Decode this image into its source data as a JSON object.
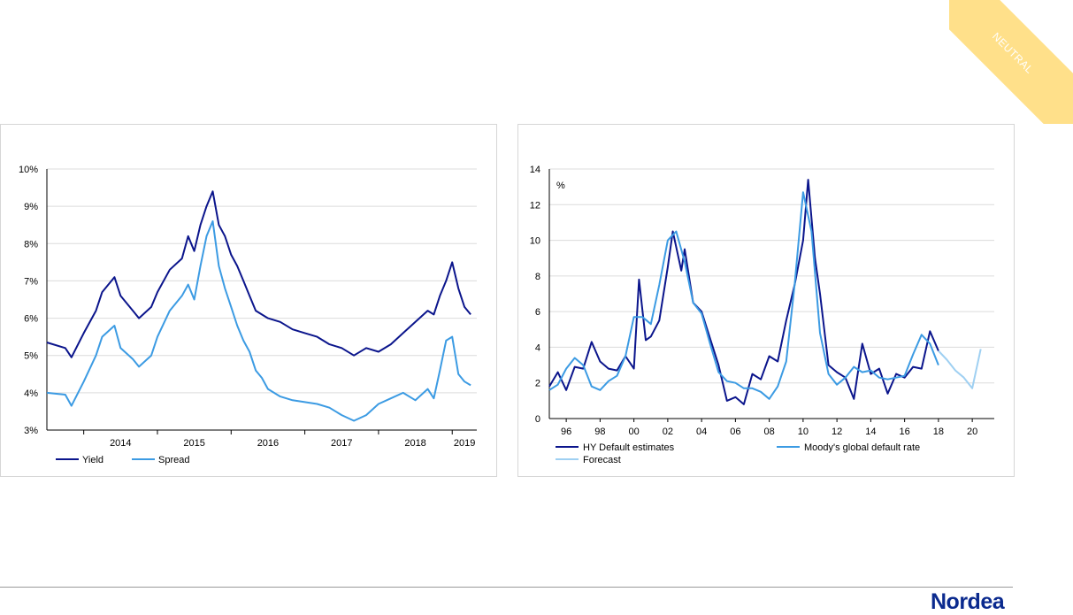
{
  "badge": "NEUTRAL",
  "brand": "Nordea",
  "colors": {
    "dark_navy": "#0b158c",
    "mid_blue": "#3c9be3",
    "light_blue": "#9fd0f2",
    "badge_yellow": "#ffe08a"
  },
  "chart_data": [
    {
      "type": "line",
      "title": "",
      "xlabel": "",
      "ylabel": "",
      "x_ticks": [
        "2014",
        "2015",
        "2016",
        "2017",
        "2018",
        "2019"
      ],
      "y_ticks": [
        "3%",
        "4%",
        "5%",
        "6%",
        "7%",
        "8%",
        "9%",
        "10%"
      ],
      "ylim": [
        3,
        10
      ],
      "xlim": [
        "2013-07",
        "2019-05"
      ],
      "grid": true,
      "legend_position": "bottom-left",
      "series": [
        {
          "name": "Yield",
          "color": "#0b158c",
          "x": [
            "2013-07",
            "2013-10",
            "2013-11",
            "2014-01",
            "2014-03",
            "2014-04",
            "2014-06",
            "2014-07",
            "2014-09",
            "2014-10",
            "2014-12",
            "2015-01",
            "2015-03",
            "2015-05",
            "2015-06",
            "2015-07",
            "2015-08",
            "2015-09",
            "2015-10",
            "2015-11",
            "2015-12",
            "2016-01",
            "2016-02",
            "2016-03",
            "2016-04",
            "2016-05",
            "2016-06",
            "2016-07",
            "2016-09",
            "2016-11",
            "2017-01",
            "2017-03",
            "2017-05",
            "2017-07",
            "2017-09",
            "2017-11",
            "2018-01",
            "2018-03",
            "2018-05",
            "2018-07",
            "2018-09",
            "2018-10",
            "2018-11",
            "2018-12",
            "2019-01",
            "2019-02",
            "2019-03",
            "2019-04"
          ],
          "values": [
            5.35,
            5.2,
            4.95,
            5.6,
            6.2,
            6.7,
            7.1,
            6.6,
            6.2,
            6.0,
            6.3,
            6.7,
            7.3,
            7.6,
            8.2,
            7.8,
            8.5,
            9.0,
            9.4,
            8.5,
            8.2,
            7.7,
            7.4,
            7.0,
            6.6,
            6.2,
            6.1,
            6.0,
            5.9,
            5.7,
            5.6,
            5.5,
            5.3,
            5.2,
            5.0,
            5.2,
            5.1,
            5.3,
            5.6,
            5.9,
            6.2,
            6.1,
            6.6,
            7.0,
            7.5,
            6.8,
            6.3,
            6.1
          ]
        },
        {
          "name": "Spread",
          "color": "#3c9be3",
          "x": [
            "2013-07",
            "2013-10",
            "2013-11",
            "2014-01",
            "2014-03",
            "2014-04",
            "2014-06",
            "2014-07",
            "2014-09",
            "2014-10",
            "2014-12",
            "2015-01",
            "2015-03",
            "2015-05",
            "2015-06",
            "2015-07",
            "2015-08",
            "2015-09",
            "2015-10",
            "2015-11",
            "2015-12",
            "2016-01",
            "2016-02",
            "2016-03",
            "2016-04",
            "2016-05",
            "2016-06",
            "2016-07",
            "2016-09",
            "2016-11",
            "2017-01",
            "2017-03",
            "2017-05",
            "2017-07",
            "2017-09",
            "2017-11",
            "2018-01",
            "2018-03",
            "2018-05",
            "2018-07",
            "2018-09",
            "2018-10",
            "2018-11",
            "2018-12",
            "2019-01",
            "2019-02",
            "2019-03",
            "2019-04"
          ],
          "values": [
            4.0,
            3.95,
            3.65,
            4.3,
            5.0,
            5.5,
            5.8,
            5.2,
            4.9,
            4.7,
            5.0,
            5.5,
            6.2,
            6.6,
            6.9,
            6.5,
            7.4,
            8.2,
            8.6,
            7.4,
            6.8,
            6.3,
            5.8,
            5.4,
            5.1,
            4.6,
            4.4,
            4.1,
            3.9,
            3.8,
            3.75,
            3.7,
            3.6,
            3.4,
            3.25,
            3.4,
            3.7,
            3.85,
            4.0,
            3.8,
            4.1,
            3.85,
            4.6,
            5.4,
            5.5,
            4.5,
            4.3,
            4.2
          ]
        }
      ]
    },
    {
      "type": "line",
      "title": "",
      "xlabel": "",
      "ylabel": "%",
      "x_ticks": [
        "96",
        "98",
        "00",
        "02",
        "04",
        "06",
        "08",
        "10",
        "12",
        "14",
        "16",
        "18",
        "20"
      ],
      "y_ticks": [
        "0",
        "2",
        "4",
        "6",
        "8",
        "10",
        "12",
        "14"
      ],
      "ylim": [
        0,
        14
      ],
      "xlim": [
        1995,
        2021.3
      ],
      "grid": true,
      "legend_position": "bottom",
      "series": [
        {
          "name": "HY Default estimates",
          "color": "#0b158c",
          "x": [
            1995,
            1995.5,
            1996,
            1996.5,
            1997,
            1997.5,
            1998,
            1998.5,
            1999,
            1999.5,
            2000,
            2000.3,
            2000.7,
            2001,
            2001.5,
            2002,
            2002.3,
            2002.8,
            2003,
            2003.5,
            2004,
            2004.5,
            2005,
            2005.5,
            2006,
            2006.5,
            2007,
            2007.5,
            2008,
            2008.5,
            2009,
            2009.5,
            2010,
            2010.3,
            2010.7,
            2011,
            2011.5,
            2012,
            2012.5,
            2013,
            2013.5,
            2014,
            2014.5,
            2015,
            2015.5,
            2016,
            2016.5,
            2017,
            2017.5,
            2018
          ],
          "values": [
            1.8,
            2.6,
            1.6,
            2.9,
            2.8,
            4.3,
            3.2,
            2.8,
            2.7,
            3.5,
            2.8,
            7.8,
            4.4,
            4.6,
            5.5,
            8.5,
            10.5,
            8.3,
            9.5,
            6.5,
            6.0,
            4.5,
            3.0,
            1.0,
            1.2,
            0.8,
            2.5,
            2.2,
            3.5,
            3.2,
            5.5,
            7.5,
            10.0,
            13.4,
            9.0,
            7.0,
            3.0,
            2.6,
            2.3,
            1.1,
            4.2,
            2.5,
            2.8,
            1.4,
            2.5,
            2.3,
            2.9,
            2.8,
            4.9,
            3.8
          ]
        },
        {
          "name": "Moody's global default rate",
          "color": "#3c9be3",
          "x": [
            1995,
            1995.5,
            1996,
            1996.5,
            1997,
            1997.5,
            1998,
            1998.5,
            1999,
            1999.5,
            2000,
            2000.5,
            2001,
            2001.5,
            2002,
            2002.5,
            2003,
            2003.5,
            2004,
            2004.5,
            2005,
            2005.5,
            2006,
            2006.5,
            2007,
            2007.5,
            2008,
            2008.5,
            2009,
            2009.5,
            2010,
            2010.5,
            2011,
            2011.5,
            2012,
            2012.5,
            2013,
            2013.5,
            2014,
            2014.5,
            2015,
            2015.5,
            2016,
            2016.5,
            2017,
            2017.5,
            2018
          ],
          "values": [
            1.6,
            1.9,
            2.8,
            3.4,
            3.0,
            1.8,
            1.6,
            2.1,
            2.4,
            3.5,
            5.7,
            5.7,
            5.3,
            7.5,
            10.0,
            10.5,
            8.8,
            6.5,
            5.9,
            4.2,
            2.6,
            2.1,
            2.0,
            1.7,
            1.7,
            1.5,
            1.1,
            1.8,
            3.2,
            7.5,
            12.7,
            10.5,
            4.8,
            2.5,
            1.9,
            2.3,
            2.9,
            2.6,
            2.7,
            2.3,
            2.2,
            2.3,
            2.4,
            3.6,
            4.7,
            4.2,
            3.0
          ]
        },
        {
          "name": "Forecast",
          "color": "#9fd0f2",
          "x": [
            2018,
            2018.5,
            2019,
            2019.5,
            2020,
            2020.5
          ],
          "values": [
            3.8,
            3.3,
            2.7,
            2.3,
            1.7,
            3.9
          ]
        }
      ]
    }
  ]
}
